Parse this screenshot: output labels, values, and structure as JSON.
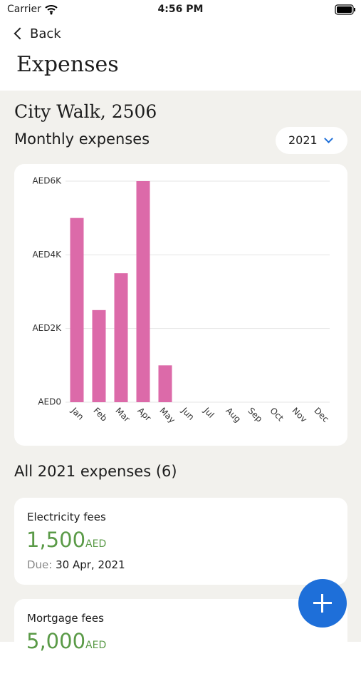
{
  "status_bar": {
    "carrier": "Carrier",
    "time": "4:56 PM"
  },
  "nav": {
    "back": "Back",
    "title": "Expenses"
  },
  "property": "City Walk, 2506",
  "section_title": "Monthly expenses",
  "year_picker": "2021",
  "chart_data": {
    "type": "bar",
    "categories": [
      "Jan",
      "Feb",
      "Mar",
      "Apr",
      "May",
      "Jun",
      "Jul",
      "Aug",
      "Sep",
      "Oct",
      "Nov",
      "Dec"
    ],
    "values": [
      5000,
      2500,
      3500,
      6000,
      1000,
      0,
      0,
      0,
      0,
      0,
      0,
      0
    ],
    "color": "#dc6aa9",
    "ylim": [
      0,
      6000
    ],
    "yticks": [
      {
        "value": 0,
        "label": "AED0"
      },
      {
        "value": 2000,
        "label": "AED2K"
      },
      {
        "value": 4000,
        "label": "AED4K"
      },
      {
        "value": 6000,
        "label": "AED6K"
      }
    ],
    "grid": true
  },
  "list_title": "All 2021 expenses (6)",
  "expenses": [
    {
      "name": "Electricity fees",
      "amount": "1,500",
      "currency": "AED",
      "due_label": "Due:",
      "due_date": "30 Apr, 2021"
    },
    {
      "name": "Mortgage fees",
      "amount": "5,000",
      "currency": "AED"
    }
  ]
}
